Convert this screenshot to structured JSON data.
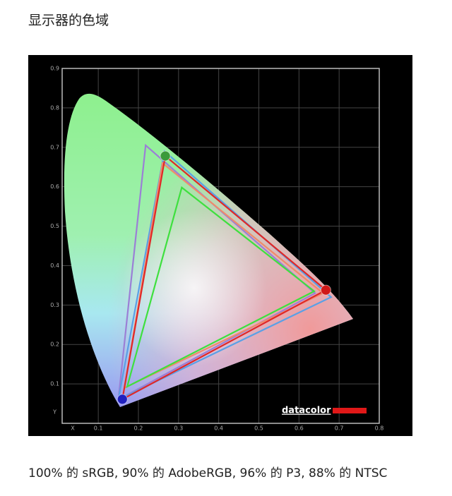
{
  "header": {
    "title": "显示器的色域"
  },
  "chart_data": {
    "type": "gamut",
    "xlabel": "X",
    "ylabel": "Y",
    "xlim": [
      0.01,
      0.8
    ],
    "ylim": [
      0,
      0.9
    ],
    "xticks": [
      0.1,
      0.2,
      0.3,
      0.4,
      0.5,
      0.6,
      0.7,
      0.8
    ],
    "yticks": [
      0.1,
      0.2,
      0.3,
      0.4,
      0.5,
      0.6,
      0.7,
      0.8,
      0.9
    ],
    "grid": true,
    "logo": "datacolor",
    "series": [
      {
        "color": "#9b7fd6",
        "x": [
          0.218,
          0.64,
          0.15
        ],
        "values": [
          0.705,
          0.33,
          0.06
        ]
      },
      {
        "color": "#5aa0e6",
        "x": [
          0.265,
          0.68,
          0.15
        ],
        "values": [
          0.69,
          0.32,
          0.06
        ]
      },
      {
        "color": "#f08a6a",
        "x": [
          0.26,
          0.66,
          0.165
        ],
        "values": [
          0.66,
          0.33,
          0.09
        ]
      },
      {
        "color": "#e02828",
        "x": [
          0.267,
          0.667,
          0.16
        ],
        "values": [
          0.678,
          0.338,
          0.061
        ]
      },
      {
        "color": "#3ee03e",
        "x": [
          0.308,
          0.638,
          0.172
        ],
        "values": [
          0.598,
          0.335,
          0.093
        ]
      }
    ],
    "primaries": {
      "x": [
        0.667,
        0.267,
        0.16
      ],
      "values": [
        0.338,
        0.678,
        0.061
      ],
      "colors": [
        "#d01818",
        "#3a9a3a",
        "#2020c0"
      ]
    }
  },
  "caption": "100% 的 sRGB, 90% 的 AdobeRGB, 96% 的 P3, 88% 的 NTSC"
}
